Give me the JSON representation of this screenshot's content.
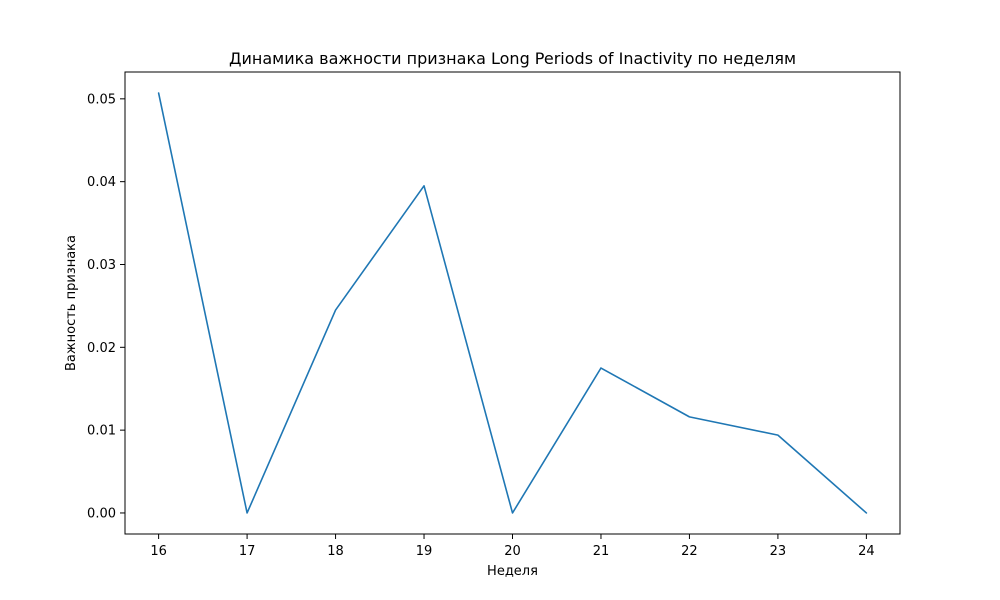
{
  "chart_data": {
    "type": "line",
    "title": "Динамика важности признака Long Periods of Inactivity по неделям",
    "xlabel": "Неделя",
    "ylabel": "Важность признака",
    "x": [
      16,
      17,
      18,
      19,
      20,
      21,
      22,
      23,
      24
    ],
    "series": [
      {
        "values": [
          0.0507,
          0.0,
          0.0245,
          0.0395,
          0.0,
          0.0175,
          0.0116,
          0.0094,
          0.0
        ]
      }
    ],
    "xlim": [
      15.62,
      24.38
    ],
    "ylim": [
      -0.00254,
      0.05324
    ],
    "x_ticks": [
      "16",
      "17",
      "18",
      "19",
      "20",
      "21",
      "22",
      "23",
      "24"
    ],
    "y_ticks": [
      "0.00",
      "0.01",
      "0.02",
      "0.03",
      "0.04",
      "0.05"
    ],
    "grid": false,
    "line_color": "#1f77b4"
  }
}
